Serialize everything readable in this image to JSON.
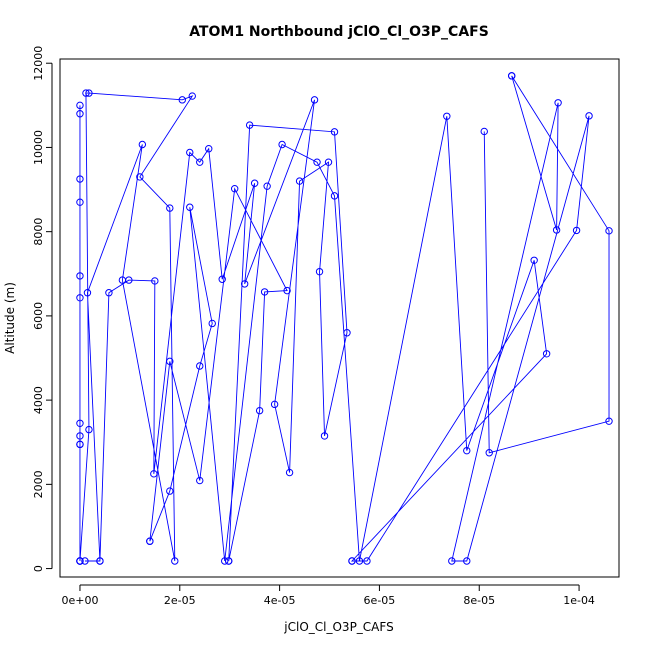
{
  "chart_data": {
    "type": "line",
    "title": "ATOM1 Northbound jClO_Cl_O3P_CAFS",
    "xlabel": "jClO_Cl_O3P_CAFS",
    "ylabel": "Altitude (m)",
    "xlim": [
      -4e-06,
      0.000108
    ],
    "ylim": [
      -200,
      12100
    ],
    "x_ticks": [
      0,
      2e-05,
      4e-05,
      6e-05,
      8e-05,
      0.0001
    ],
    "x_tick_labels": [
      "0e+00",
      "2e-05",
      "4e-05",
      "6e-05",
      "8e-05",
      "1e-04"
    ],
    "y_ticks": [
      0,
      2000,
      4000,
      6000,
      8000,
      10000,
      12000
    ],
    "y_tick_labels": [
      "0",
      "2000",
      "4000",
      "6000",
      "8000",
      "10000",
      "12000"
    ],
    "grid": false,
    "legend": "none",
    "series": [
      {
        "color": "#0000ff",
        "marker": "open-circle",
        "x": [
          0,
          0,
          0,
          0,
          0,
          0,
          0,
          0,
          0,
          0,
          0,
          0,
          0,
          0,
          1.8e-06,
          1.2e-06,
          1.8e-06,
          2.05e-05,
          2.25e-05,
          1.2e-05,
          1.8e-05,
          1.9e-05,
          8.5e-06,
          1.25e-05,
          1.5e-06,
          4e-06,
          1e-06,
          4e-06,
          5.8e-06,
          9.8e-06,
          1.5e-05,
          1.48e-05,
          2.2e-05,
          2.4e-05,
          2.58e-05,
          2.85e-05,
          3.5e-05,
          3.3e-05,
          4.7e-05,
          3.9e-05,
          4.2e-05,
          4.4e-05,
          4.98e-05,
          4.8e-05,
          4.9e-05,
          5.35e-05,
          5.1e-05,
          3.4e-05,
          2.98e-05,
          2.98e-05,
          3.6e-05,
          3.7e-05,
          4.15e-05,
          3.1e-05,
          2.4e-05,
          1.8e-05,
          1.4e-05,
          1.4e-05,
          1.8e-05,
          2.4e-05,
          2.65e-05,
          2.2e-05,
          2.9e-05,
          3.75e-05,
          4.05e-05,
          4.75e-05,
          5.1e-05,
          5.6e-05,
          7.35e-05,
          7.75e-05,
          9.1e-05,
          9.35e-05,
          5.45e-05,
          5.45e-05,
          5.75e-05,
          9.95e-05,
          0.000102,
          7.75e-05,
          7.45e-05,
          9.58e-05,
          9.55e-05,
          8.65e-05,
          8.65e-05,
          0.000106,
          0.000106,
          8.2e-05,
          8.1e-05
        ],
        "y": [
          10800,
          9250,
          11000,
          8700,
          6950,
          6430,
          3150,
          3450,
          2950,
          2950,
          180,
          180,
          180,
          180,
          3300,
          11290,
          11290,
          11130,
          11220,
          9300,
          8560,
          180,
          6850,
          10070,
          6550,
          180,
          180,
          180,
          6550,
          6850,
          6830,
          2250,
          9880,
          9650,
          9970,
          6870,
          9150,
          6760,
          11130,
          3900,
          2280,
          9200,
          9650,
          7050,
          3150,
          5600,
          10370,
          10530,
          180,
          180,
          3750,
          6570,
          6600,
          9020,
          2090,
          4920,
          650,
          650,
          1840,
          4810,
          5820,
          8580,
          180,
          9080,
          10070,
          9650,
          8850,
          180,
          10740,
          2800,
          7320,
          5100,
          180,
          180,
          180,
          8030,
          10750,
          180,
          180,
          11060,
          8040,
          11700,
          11700,
          8020,
          3500,
          2750,
          10380
        ]
      }
    ]
  }
}
